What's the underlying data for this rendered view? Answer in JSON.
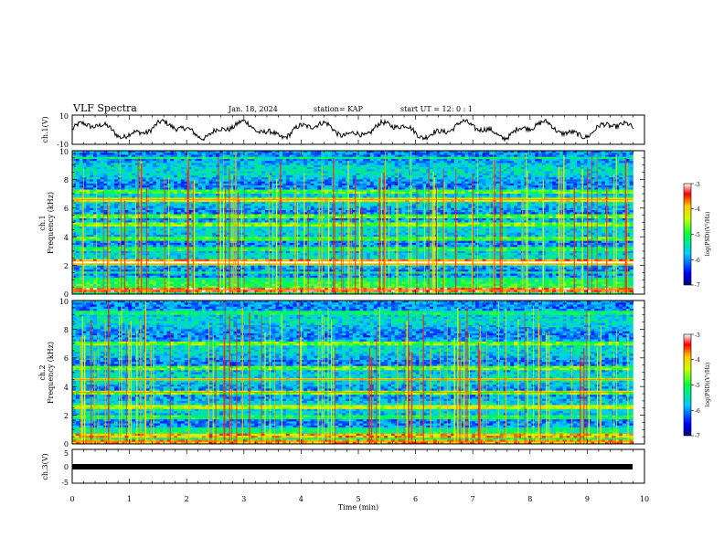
{
  "header": {
    "title": "VLF Spectra",
    "date": "Jan. 18, 2024",
    "station": "station= KAP",
    "start_ut": "start UT =  12: 0  : 1"
  },
  "chart_data": [
    {
      "type": "line",
      "ylabel": "ch.1(V)",
      "ylim": [
        -10,
        10
      ],
      "yticks": [
        "10",
        "-10"
      ],
      "xlim": [
        0,
        10
      ],
      "description_series": "ch.1 waveform envelope"
    },
    {
      "type": "heatmap",
      "ylabel": "ch.1 Frequency (kHz)",
      "ylim": [
        0,
        10
      ],
      "yticks": [
        "0",
        "2",
        "4",
        "6",
        "8",
        "10"
      ],
      "xlim": [
        0,
        10
      ],
      "xdata_end": 9.8,
      "colorbar": {
        "label": "log(PSD)(V²/Hz)",
        "ticks": [
          "-3",
          "-4",
          "-5",
          "-6",
          "-7"
        ],
        "range": [
          -7,
          -3
        ]
      }
    },
    {
      "type": "heatmap",
      "ylabel": "ch.2 Frequency (kHz)",
      "ylim": [
        0,
        10
      ],
      "yticks": [
        "0",
        "2",
        "4",
        "6",
        "8",
        "10"
      ],
      "xlim": [
        0,
        10
      ],
      "xdata_end": 9.8,
      "colorbar": {
        "label": "log(PSD)(V²/Hz)",
        "ticks": [
          "-3",
          "-4",
          "-5",
          "-6",
          "-7"
        ],
        "range": [
          -7,
          -3
        ]
      }
    },
    {
      "type": "line",
      "ylabel": "ch.3(V)",
      "ylim": [
        -5,
        5
      ],
      "yticks": [
        "5",
        "0",
        "-5"
      ],
      "xlim": [
        0,
        10
      ],
      "xlabel": "Time (min)",
      "xticks": [
        "0",
        "1",
        "2",
        "3",
        "4",
        "5",
        "6",
        "7",
        "8",
        "9",
        "10"
      ],
      "constant_value": 0
    }
  ],
  "labels": {
    "ch1_wave": "ch.1(V)",
    "ch1_spec_a": "ch.1",
    "ch1_spec_b": "Frequency (kHz)",
    "ch2_spec_a": "ch.2",
    "ch2_spec_b": "Frequency (kHz)",
    "ch3_wave": "ch.3(V)",
    "xlabel": "Time (min)",
    "cb_label": "log(PSD)(V²/Hz)"
  }
}
